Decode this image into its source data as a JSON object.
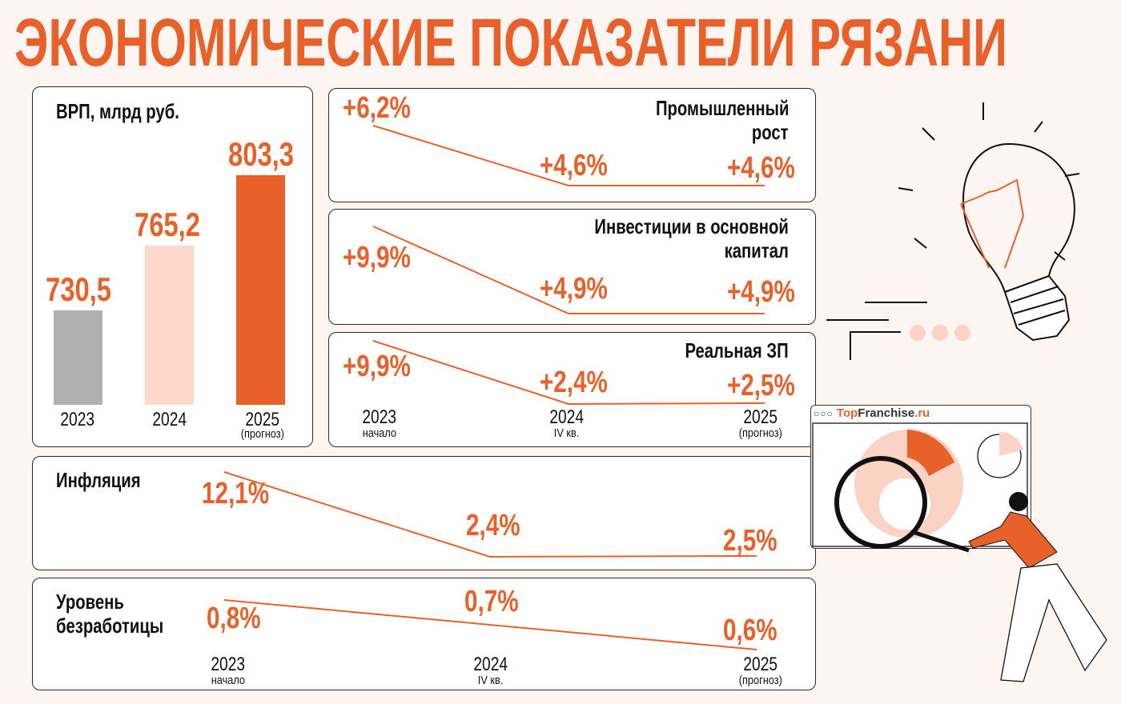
{
  "title": "ЭКОНОМИЧЕСКИЕ ПОКАЗАТЕЛИ РЯЗАНИ",
  "brand": {
    "part1": "Top",
    "part2": "Franchise",
    "part3": ".ru"
  },
  "colors": {
    "accent": "#e8612a",
    "bar_2023": "#b0b0b0",
    "bar_2024": "#fdd9cc",
    "bar_2025": "#e8612a",
    "background": "#fdf5f1"
  },
  "chart_data": [
    {
      "type": "bar",
      "title": "ВРП, млрд руб.",
      "categories": [
        "2023",
        "2024",
        "2025"
      ],
      "sublabels": [
        "",
        "",
        "(прогноз)"
      ],
      "values": [
        730.5,
        765.2,
        803.3
      ],
      "labels": [
        "730,5",
        "765,2",
        "803,3"
      ]
    },
    {
      "type": "line",
      "title": "Промышленный рост",
      "title_lines": [
        "Промышленный",
        "рост"
      ],
      "values": [
        6.2,
        4.6,
        4.6
      ],
      "labels": [
        "+6,2%",
        "+4,6%",
        "+4,6%"
      ]
    },
    {
      "type": "line",
      "title": "Инвестиции в основной капитал",
      "title_lines": [
        "Инвестиции в основной",
        "капитал"
      ],
      "values": [
        9.9,
        4.9,
        4.9
      ],
      "labels": [
        "+9,9%",
        "+4,9%",
        "+4,9%"
      ]
    },
    {
      "type": "line",
      "title": "Реальная ЗП",
      "categories": [
        "2023",
        "2024",
        "2025"
      ],
      "sublabels": [
        "начало",
        "IV кв.",
        "(прогноз)"
      ],
      "values": [
        9.9,
        2.4,
        2.5
      ],
      "labels": [
        "+9,9%",
        "+2,4%",
        "+2,5%"
      ]
    },
    {
      "type": "line",
      "title": "Инфляция",
      "values": [
        12.1,
        2.4,
        2.5
      ],
      "labels": [
        "12,1%",
        "2,4%",
        "2,5%"
      ]
    },
    {
      "type": "line",
      "title": "Уровень безработицы",
      "title_lines": [
        "Уровень",
        "безработицы"
      ],
      "categories": [
        "2023",
        "2024",
        "2025"
      ],
      "sublabels": [
        "начало",
        "IV кв.",
        "(прогноз)"
      ],
      "values": [
        0.8,
        0.7,
        0.6
      ],
      "labels": [
        "0,8%",
        "0,7%",
        "0,6%"
      ]
    }
  ]
}
